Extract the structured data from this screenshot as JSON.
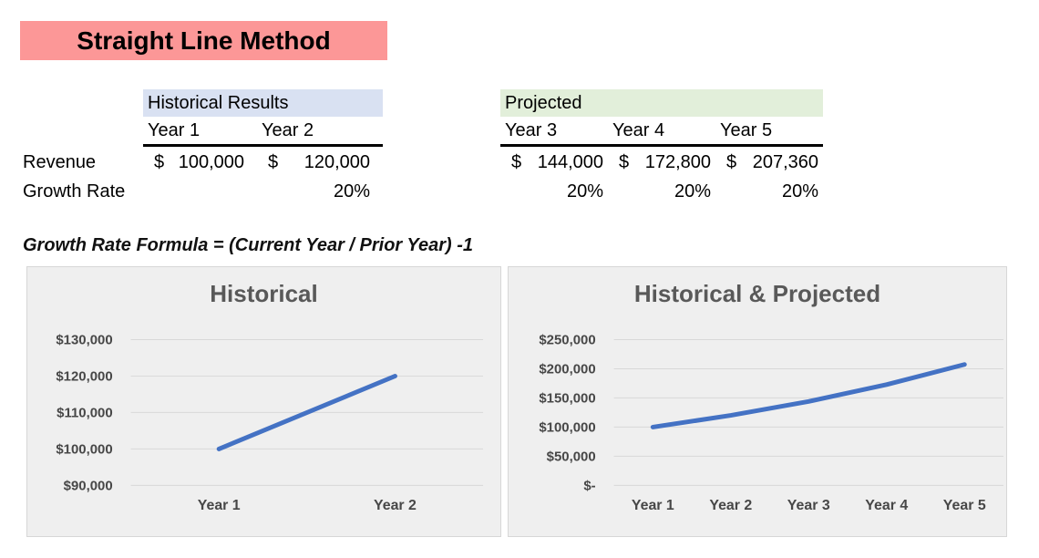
{
  "title_banner": {
    "label": "Straight Line Method",
    "bg_color": "#fc9797"
  },
  "assumptions_table": {
    "row_labels": {
      "revenue": "Revenue",
      "growth": "Growth Rate"
    },
    "historical": {
      "header": "Historical Results",
      "header_bg": "#d9e1f2",
      "years": [
        "Year 1",
        "Year 2"
      ],
      "revenue": [
        {
          "cur": "$",
          "amt": "100,000"
        },
        {
          "cur": "$",
          "amt": "120,000"
        }
      ],
      "growth": [
        "",
        "20%"
      ]
    },
    "projected": {
      "header": "Projected",
      "header_bg": "#e2efda",
      "years": [
        "Year 3",
        "Year 4",
        "Year 5"
      ],
      "revenue": [
        {
          "cur": "$",
          "amt": "144,000"
        },
        {
          "cur": "$",
          "amt": "172,800"
        },
        {
          "cur": "$",
          "amt": "207,360"
        }
      ],
      "growth": [
        "20%",
        "20%",
        "20%"
      ]
    }
  },
  "formula_note": "Growth Rate Formula = (Current Year / Prior Year) -1",
  "chart_data": [
    {
      "type": "line",
      "title": "Historical",
      "categories": [
        "Year 1",
        "Year 2"
      ],
      "series": [
        {
          "name": "Revenue",
          "values": [
            100000,
            120000
          ]
        }
      ],
      "ylim": [
        90000,
        130000
      ],
      "ytick_step": 10000,
      "ytick_labels": [
        "$90,000",
        "$100,000",
        "$110,000",
        "$120,000",
        "$130,000"
      ],
      "grid": true,
      "legend": "none",
      "line_color": "#4472c4",
      "bg_color": "#efefef"
    },
    {
      "type": "line",
      "title": "Historical & Projected",
      "categories": [
        "Year 1",
        "Year 2",
        "Year 3",
        "Year 4",
        "Year 5"
      ],
      "series": [
        {
          "name": "Revenue",
          "values": [
            100000,
            120000,
            144000,
            172800,
            207360
          ]
        }
      ],
      "ylim": [
        0,
        250000
      ],
      "ytick_step": 50000,
      "ytick_labels": [
        "$-",
        "$50,000",
        "$100,000",
        "$150,000",
        "$200,000",
        "$250,000"
      ],
      "grid": true,
      "legend": "none",
      "line_color": "#4472c4",
      "bg_color": "#efefef"
    }
  ]
}
